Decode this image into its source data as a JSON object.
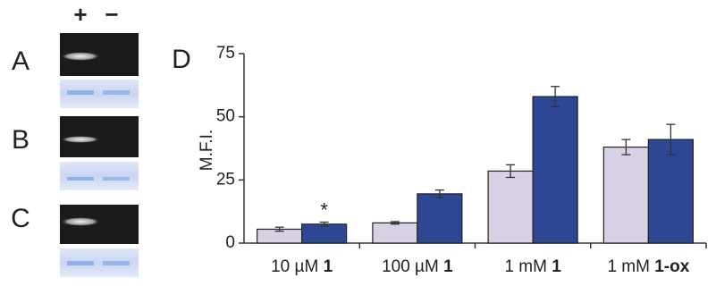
{
  "gel_panels": {
    "lanes": [
      "+",
      "−"
    ],
    "labels": [
      "A",
      "B",
      "C"
    ]
  },
  "chart_data": {
    "type": "bar",
    "panel_label": "D",
    "y_label": "M.F.I.",
    "categories": [
      "10 µM 1",
      "100 µM 1",
      "1 mM 1",
      "1 mM 1-ox"
    ],
    "series": [
      {
        "color": "#d8d1e6",
        "values": [
          5.5,
          8,
          28.5,
          38
        ],
        "errors": [
          0.8,
          0.5,
          2.5,
          3
        ]
      },
      {
        "color": "#2d4795",
        "values": [
          7.5,
          19.5,
          58,
          41
        ],
        "errors": [
          0.8,
          1.5,
          4,
          6
        ]
      }
    ],
    "annotation": "*",
    "ylim": [
      0,
      75
    ],
    "yticks": [
      0,
      25,
      50,
      75
    ]
  }
}
